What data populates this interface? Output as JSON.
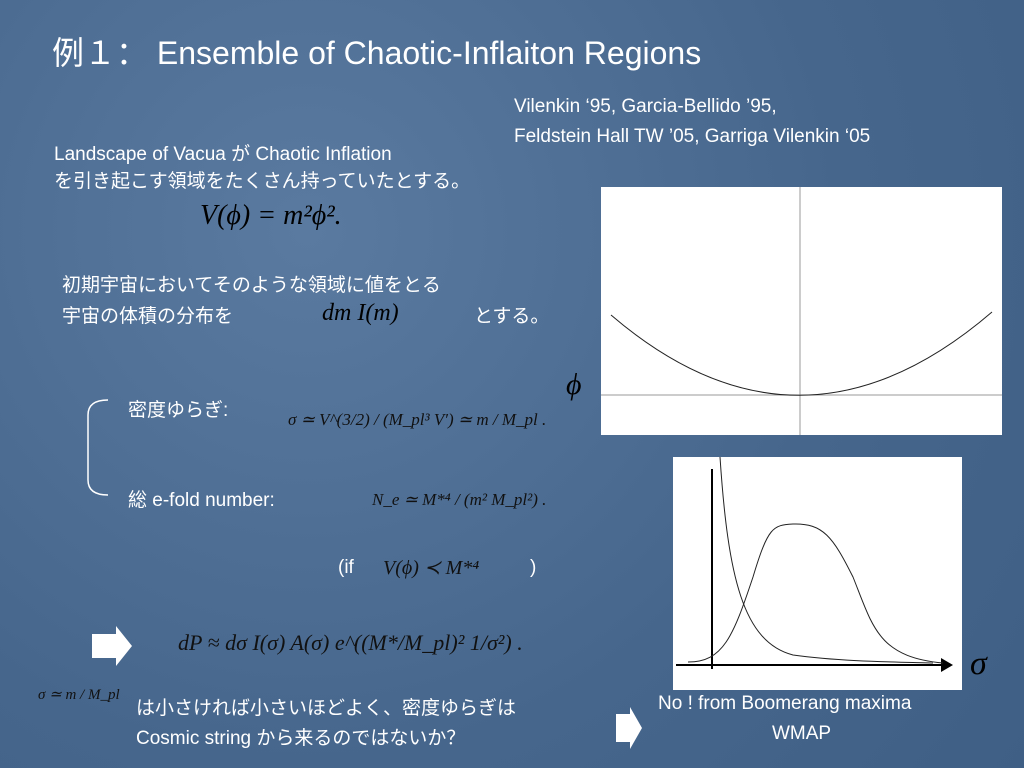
{
  "title": "例１： Ensemble of Chaotic-Inflaiton Regions",
  "references": [
    "Vilenkin ‘95, Garcia-Bellido ’95,",
    "Feldstein Hall TW ’05, Garriga Vilenkin ‘05"
  ],
  "intro": [
    "Landscape of Vacua が Chaotic Inflation",
    "を引き起こす領域をたくさん持っていたとする。"
  ],
  "potential": "V(ϕ) = m²ϕ².",
  "distribution": {
    "line1": "初期宇宙においてそのような領域に値をとる",
    "line2": "宇宙の体積の分布を",
    "formula": "dm I(m)",
    "suffix": "とする。"
  },
  "fluctuation": {
    "label": "密度ゆらぎ:",
    "formula": "σ ≃ V^(3/2) / (M_pl³ V′) ≃ m / M_pl ."
  },
  "efold": {
    "label": "総 e-fold number:",
    "formula": "N_e ≃ M*⁴ / (m² M_pl²) ."
  },
  "condition": {
    "open": "(if",
    "formula": "V(ϕ) ≺ M*⁴",
    "close": ")"
  },
  "probability": "dP ≈ dσ I(σ) A(σ) e^((M*/M_pl)² 1/σ²) .",
  "conclusion": {
    "formula": "σ ≃ m / M_pl",
    "line1": "は小さければ小さいほどよく、密度ゆらぎは",
    "line2": "Cosmic string から来るのではないか？"
  },
  "observation": [
    "No ! from  Boomerang maxima",
    "WMAP"
  ],
  "plot_labels": {
    "phi": "ϕ",
    "sigma": "σ"
  }
}
